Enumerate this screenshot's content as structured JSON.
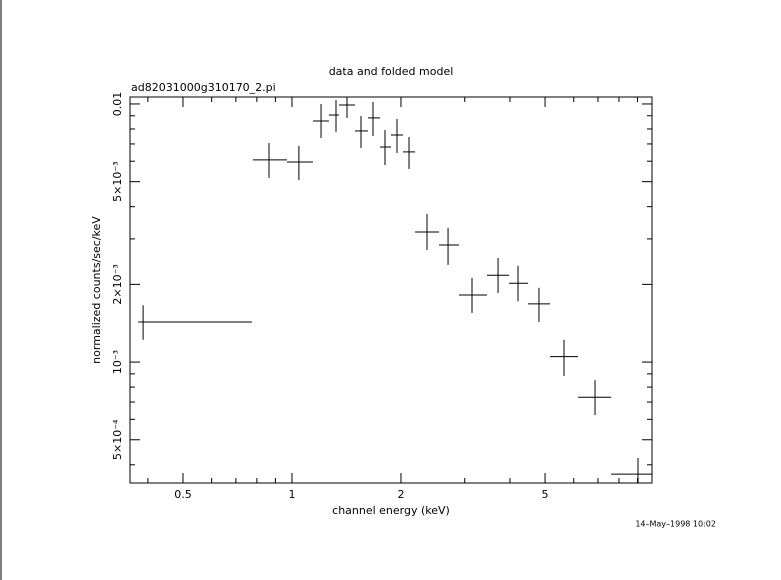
{
  "chart_data": {
    "type": "errorbar",
    "title": "data and folded model",
    "subtitle": "ad82031000g310170_2.pi",
    "x_label": "channel energy (keV)",
    "y_label": "normalized counts/sec/keV",
    "timestamp": "14–May–1998 10:02",
    "log_x": true,
    "log_y": true,
    "color": "#000000",
    "xlim": [
      0.357,
      9.87
    ],
    "ylim": [
      0.00034,
      0.01064
    ],
    "xticks": [
      0.5,
      1,
      2,
      5
    ],
    "xminor": [
      0.4,
      0.6,
      0.7,
      0.8,
      0.9,
      3,
      4,
      6,
      7,
      8,
      9
    ],
    "yticks": [
      {
        "value": 0.01,
        "label": "0.01"
      },
      {
        "value": 0.005,
        "label": "5×10⁻³"
      },
      {
        "value": 0.002,
        "label": "2×10⁻³"
      },
      {
        "value": 0.001,
        "label": "10⁻³"
      },
      {
        "value": 0.0005,
        "label": "5×10⁻⁴"
      }
    ],
    "yminor": [
      0.0004,
      0.0006,
      0.0007,
      0.0008,
      0.0009,
      0.003,
      0.004,
      0.006,
      0.007,
      0.008,
      0.009
    ],
    "x": [
      0.388,
      0.864,
      1.045,
      1.203,
      1.323,
      1.419,
      1.551,
      1.674,
      1.807,
      1.95,
      2.105,
      2.36,
      2.698,
      3.142,
      3.708,
      4.21,
      4.81,
      5.64,
      6.87,
      9.03
    ],
    "x_low": [
      0.376,
      0.78,
      0.969,
      1.143,
      1.265,
      1.348,
      1.493,
      1.622,
      1.751,
      1.877,
      2.026,
      2.187,
      2.547,
      2.893,
      3.457,
      3.977,
      4.49,
      5.16,
      6.17,
      7.61
    ],
    "x_high": [
      0.775,
      0.969,
      1.143,
      1.265,
      1.348,
      1.493,
      1.622,
      1.751,
      1.877,
      2.026,
      2.187,
      2.547,
      2.893,
      3.457,
      3.977,
      4.49,
      5.16,
      6.17,
      7.61,
      9.87
    ],
    "values": [
      0.00143,
      0.00607,
      0.00596,
      0.00859,
      0.00906,
      0.00991,
      0.00786,
      0.00883,
      0.00681,
      0.00758,
      0.00652,
      0.00319,
      0.00284,
      0.00182,
      0.00217,
      0.00202,
      0.00168,
      0.00105,
      0.000731,
      0.000368
    ],
    "y_low": [
      0.00122,
      0.00517,
      0.00507,
      0.00738,
      0.00779,
      0.00883,
      0.00675,
      0.00751,
      0.0058,
      0.00646,
      0.0056,
      0.00272,
      0.00238,
      0.00155,
      0.00185,
      0.00172,
      0.00143,
      0.000883,
      0.000623,
      0.00032
    ],
    "y_high": [
      0.00166,
      0.00706,
      0.00688,
      0.01,
      0.01036,
      0.01064,
      0.00898,
      0.01018,
      0.00793,
      0.00875,
      0.00745,
      0.00375,
      0.00331,
      0.00212,
      0.00253,
      0.00236,
      0.00194,
      0.00122,
      0.000851,
      0.000425
    ]
  }
}
